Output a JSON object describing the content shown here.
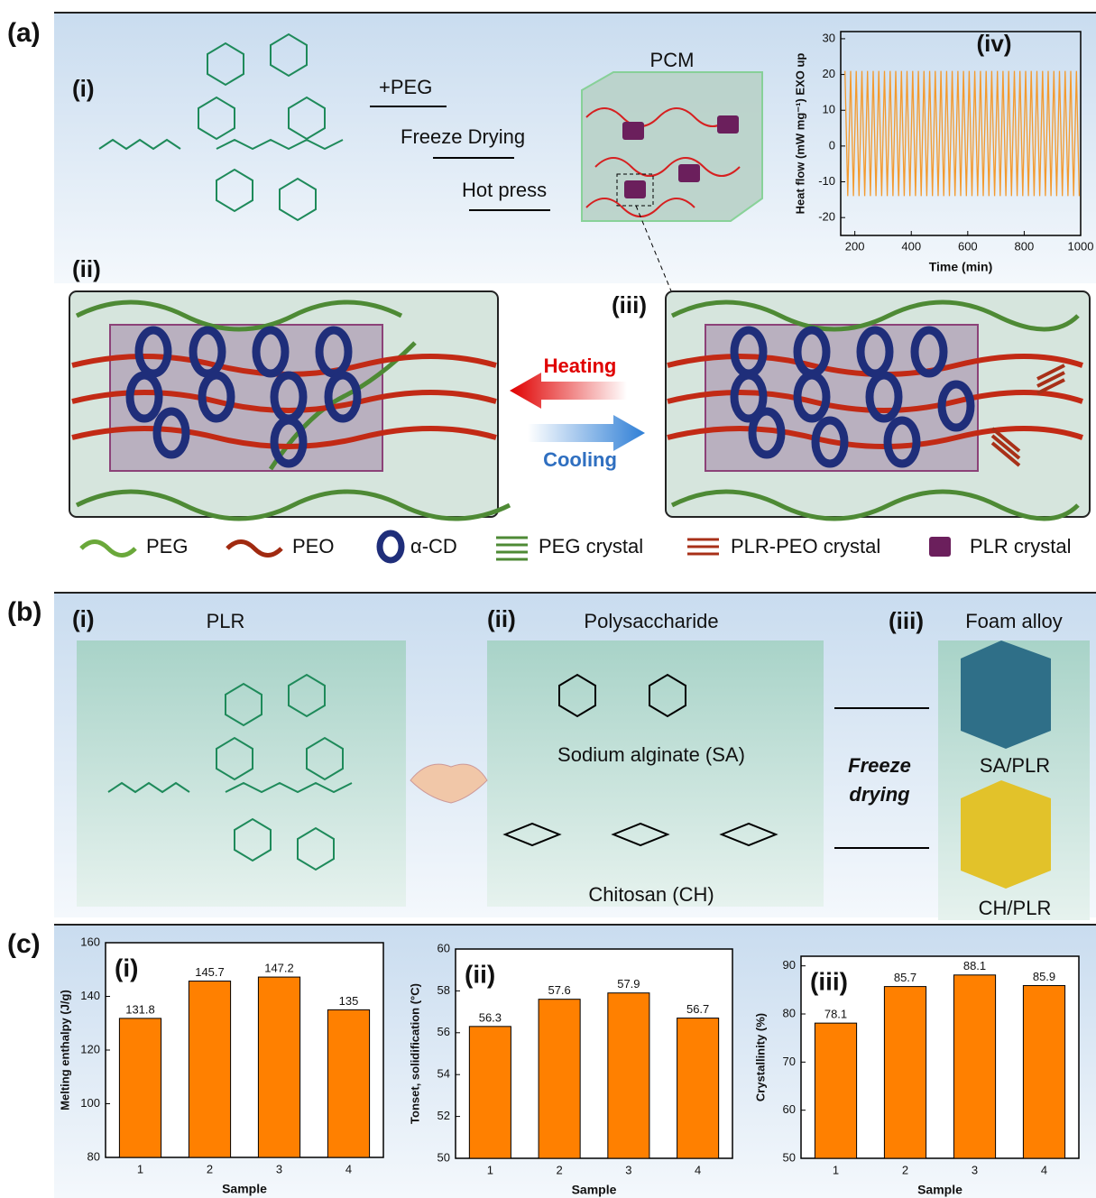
{
  "figure": {
    "a": {
      "label": "(a)",
      "i": "(i)",
      "step1": "+PEG",
      "step2": "Freeze Drying",
      "step3": "Hot press",
      "pcm": "PCM",
      "ii": "(ii)",
      "iii": "(iii)",
      "heating": "Heating",
      "cooling": "Cooling",
      "legend": [
        "PEG",
        "PEO",
        "α-CD",
        "PEG crystal",
        "PLR-PEO crystal",
        "PLR crystal"
      ]
    },
    "b": {
      "label": "(b)",
      "i": "(i)",
      "i_title": "PLR",
      "ii": "(ii)",
      "ii_title": "Polysaccharide",
      "iii": "(iii)",
      "iii_title": "Foam alloy",
      "sa": "Sodium alginate (SA)",
      "ch": "Chitosan (CH)",
      "process": [
        "Freeze",
        "drying"
      ],
      "sa_plr": "SA/PLR",
      "ch_plr": "CH/PLR"
    },
    "c": {
      "label": "(c)"
    }
  },
  "chart_data": [
    {
      "type": "line",
      "annotation": "(iv)",
      "xlabel": "Time (min)",
      "ylabel": "Heat flow (mW mg⁻¹) EXO up",
      "color": "#f39a2e",
      "x": [
        165,
        175,
        185,
        195,
        205,
        215,
        225,
        235,
        245,
        255,
        265,
        275,
        285,
        295,
        305,
        315,
        325,
        335,
        345,
        355,
        365,
        375,
        385,
        395,
        405,
        415,
        425,
        435,
        445,
        455,
        465,
        475,
        485,
        495,
        505,
        515,
        525,
        535,
        545,
        555,
        565,
        575,
        585,
        595,
        605,
        615,
        625,
        635,
        645,
        655,
        665,
        675,
        685,
        695,
        705,
        715,
        725,
        735,
        745,
        755,
        765,
        775,
        785,
        795,
        805,
        815,
        825,
        835,
        845,
        855,
        865,
        875,
        885,
        895,
        905,
        915,
        925,
        935,
        945,
        955,
        965,
        975,
        985,
        995
      ],
      "values": [
        21,
        -14,
        21,
        -14,
        21,
        -14,
        21,
        -14,
        21,
        -14,
        21,
        -14,
        21,
        -14,
        21,
        -14,
        21,
        -14,
        21,
        -14,
        21,
        -14,
        21,
        -14,
        21,
        -14,
        21,
        -14,
        21,
        -14,
        21,
        -14,
        21,
        -14,
        21,
        -14,
        21,
        -14,
        21,
        -14,
        21,
        -14,
        21,
        -14,
        21,
        -14,
        21,
        -14,
        21,
        -14,
        21,
        -14,
        21,
        -14,
        21,
        -14,
        21,
        -14,
        21,
        -14,
        21,
        -14,
        21,
        -14,
        21,
        -14,
        21,
        -14,
        21,
        -14,
        21,
        -14,
        21,
        -14,
        21,
        -14,
        21,
        -14,
        21,
        -14,
        21,
        -14,
        21,
        -14
      ],
      "xlim": [
        150,
        1000
      ],
      "xticks": [
        200,
        400,
        600,
        800,
        1000
      ],
      "ylim": [
        -25,
        32
      ],
      "yticks": [
        -20,
        -10,
        0,
        10,
        20,
        30
      ]
    },
    {
      "type": "bar",
      "annotation": "(i)",
      "xlabel": "Sample",
      "ylabel": "Melting enthalpy (J/g)",
      "color": "#ff8000",
      "categories": [
        "1",
        "2",
        "3",
        "4"
      ],
      "values": [
        131.8,
        145.7,
        147.2,
        135
      ],
      "ylim": [
        80,
        160
      ],
      "yticks": [
        80,
        100,
        120,
        140,
        160
      ]
    },
    {
      "type": "bar",
      "annotation": "(ii)",
      "xlabel": "Sample",
      "ylabel": "Tonset, solidification (°C)",
      "color": "#ff8000",
      "categories": [
        "1",
        "2",
        "3",
        "4"
      ],
      "values": [
        56.3,
        57.6,
        57.9,
        56.7
      ],
      "ylim": [
        50,
        60
      ],
      "yticks": [
        50,
        52,
        54,
        56,
        58,
        60
      ]
    },
    {
      "type": "bar",
      "annotation": "(iii)",
      "xlabel": "Sample",
      "ylabel": "Crystallinity (%)",
      "color": "#ff8000",
      "categories": [
        "1",
        "2",
        "3",
        "4"
      ],
      "values": [
        78.1,
        85.7,
        88.1,
        85.9
      ],
      "ylim": [
        50,
        92
      ],
      "yticks": [
        50,
        60,
        70,
        80,
        90
      ]
    }
  ]
}
